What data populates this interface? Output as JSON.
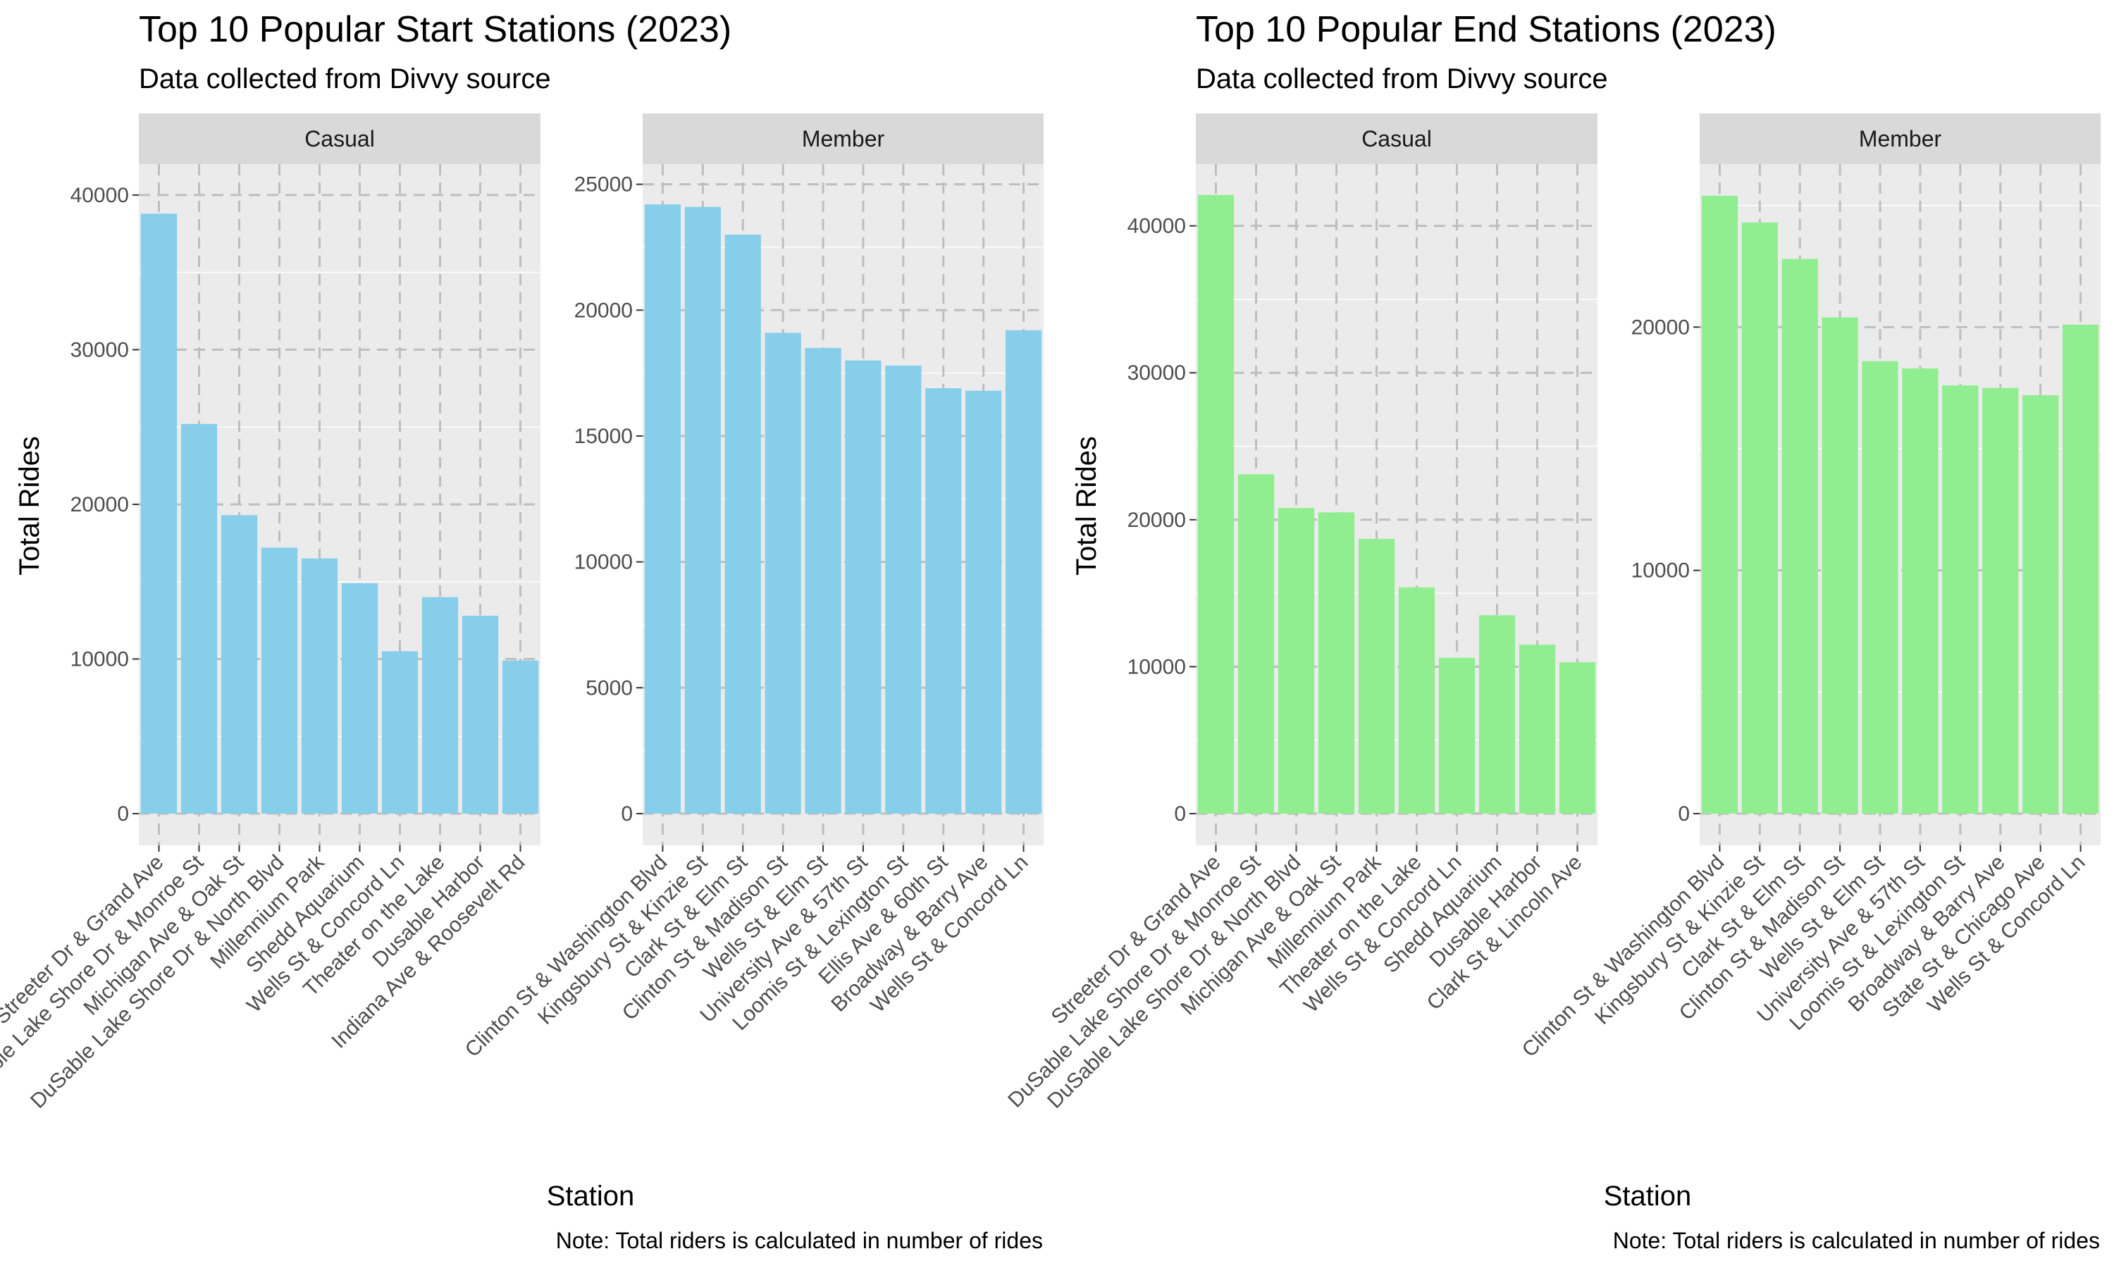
{
  "colors": {
    "start_bar": "#87CEEB",
    "end_bar": "#90EE90",
    "panel_bg": "#EBEBEB",
    "strip_bg": "#D9D9D9",
    "grid": "#FFFFFF",
    "dashed_grid": "#BEBEBE"
  },
  "chart_data": [
    {
      "type": "bar",
      "title": "Top 10 Popular Start Stations (2023)",
      "subtitle": "Data collected from Divvy source",
      "xlabel": "Station",
      "ylabel": "Total Rides",
      "caption": "Note: Total riders is calculated in number of rides",
      "facets": [
        {
          "name": "Casual",
          "ylim": [
            0,
            42000
          ],
          "yticks": [
            0,
            10000,
            20000,
            30000,
            40000
          ],
          "categories": [
            "Streeter Dr & Grand Ave",
            "DuSable Lake Shore Dr & Monroe St",
            "Michigan Ave & Oak St",
            "DuSable Lake Shore Dr & North Blvd",
            "Millennium Park",
            "Shedd Aquarium",
            "Wells St & Concord Ln",
            "Theater on the Lake",
            "Dusable Harbor",
            "Indiana Ave & Roosevelt Rd"
          ],
          "values": [
            38800,
            25200,
            19300,
            17200,
            16500,
            14900,
            10500,
            14000,
            12800,
            9900
          ]
        },
        {
          "name": "Member",
          "ylim": [
            0,
            25800
          ],
          "yticks": [
            0,
            5000,
            10000,
            15000,
            20000,
            25000
          ],
          "categories": [
            "Clinton St & Washington Blvd",
            "Kingsbury St & Kinzie St",
            "Clark St & Elm St",
            "Clinton St & Madison St",
            "Wells St & Elm St",
            "University Ave & 57th St",
            "Loomis St & Lexington St",
            "Ellis Ave & 60th St",
            "Broadway & Barry Ave",
            "Wells St & Concord Ln"
          ],
          "values": [
            24200,
            24100,
            23000,
            19100,
            18500,
            18000,
            17800,
            16900,
            16800,
            19200
          ]
        }
      ]
    },
    {
      "type": "bar",
      "title": "Top 10 Popular End Stations (2023)",
      "subtitle": "Data collected from Divvy source",
      "xlabel": "Station",
      "ylabel": "Total Rides",
      "caption": "Note: Total riders is calculated in number of rides",
      "facets": [
        {
          "name": "Casual",
          "ylim": [
            0,
            44200
          ],
          "yticks": [
            0,
            10000,
            20000,
            30000,
            40000
          ],
          "categories": [
            "Streeter Dr & Grand Ave",
            "DuSable Lake Shore Dr & Monroe St",
            "DuSable Lake Shore Dr & North Blvd",
            "Michigan Ave & Oak St",
            "Millennium Park",
            "Theater on the Lake",
            "Wells St & Concord Ln",
            "Shedd Aquarium",
            "Dusable Harbor",
            "Clark St & Lincoln Ave"
          ],
          "values": [
            42100,
            23100,
            20800,
            20500,
            18700,
            15400,
            10600,
            13500,
            11500,
            10300
          ]
        },
        {
          "name": "Member",
          "ylim": [
            0,
            26700
          ],
          "yticks": [
            0,
            10000,
            20000
          ],
          "categories": [
            "Clinton St & Washington Blvd",
            "Kingsbury St & Kinzie St",
            "Clark St & Elm St",
            "Clinton St & Madison St",
            "Wells St & Elm St",
            "University Ave & 57th St",
            "Loomis St & Lexington St",
            "Broadway & Barry Ave",
            "State St & Chicago Ave",
            "Wells St & Concord Ln"
          ],
          "values": [
            25400,
            24300,
            22800,
            20400,
            18600,
            18300,
            17600,
            17500,
            17200,
            20100
          ]
        }
      ]
    }
  ]
}
